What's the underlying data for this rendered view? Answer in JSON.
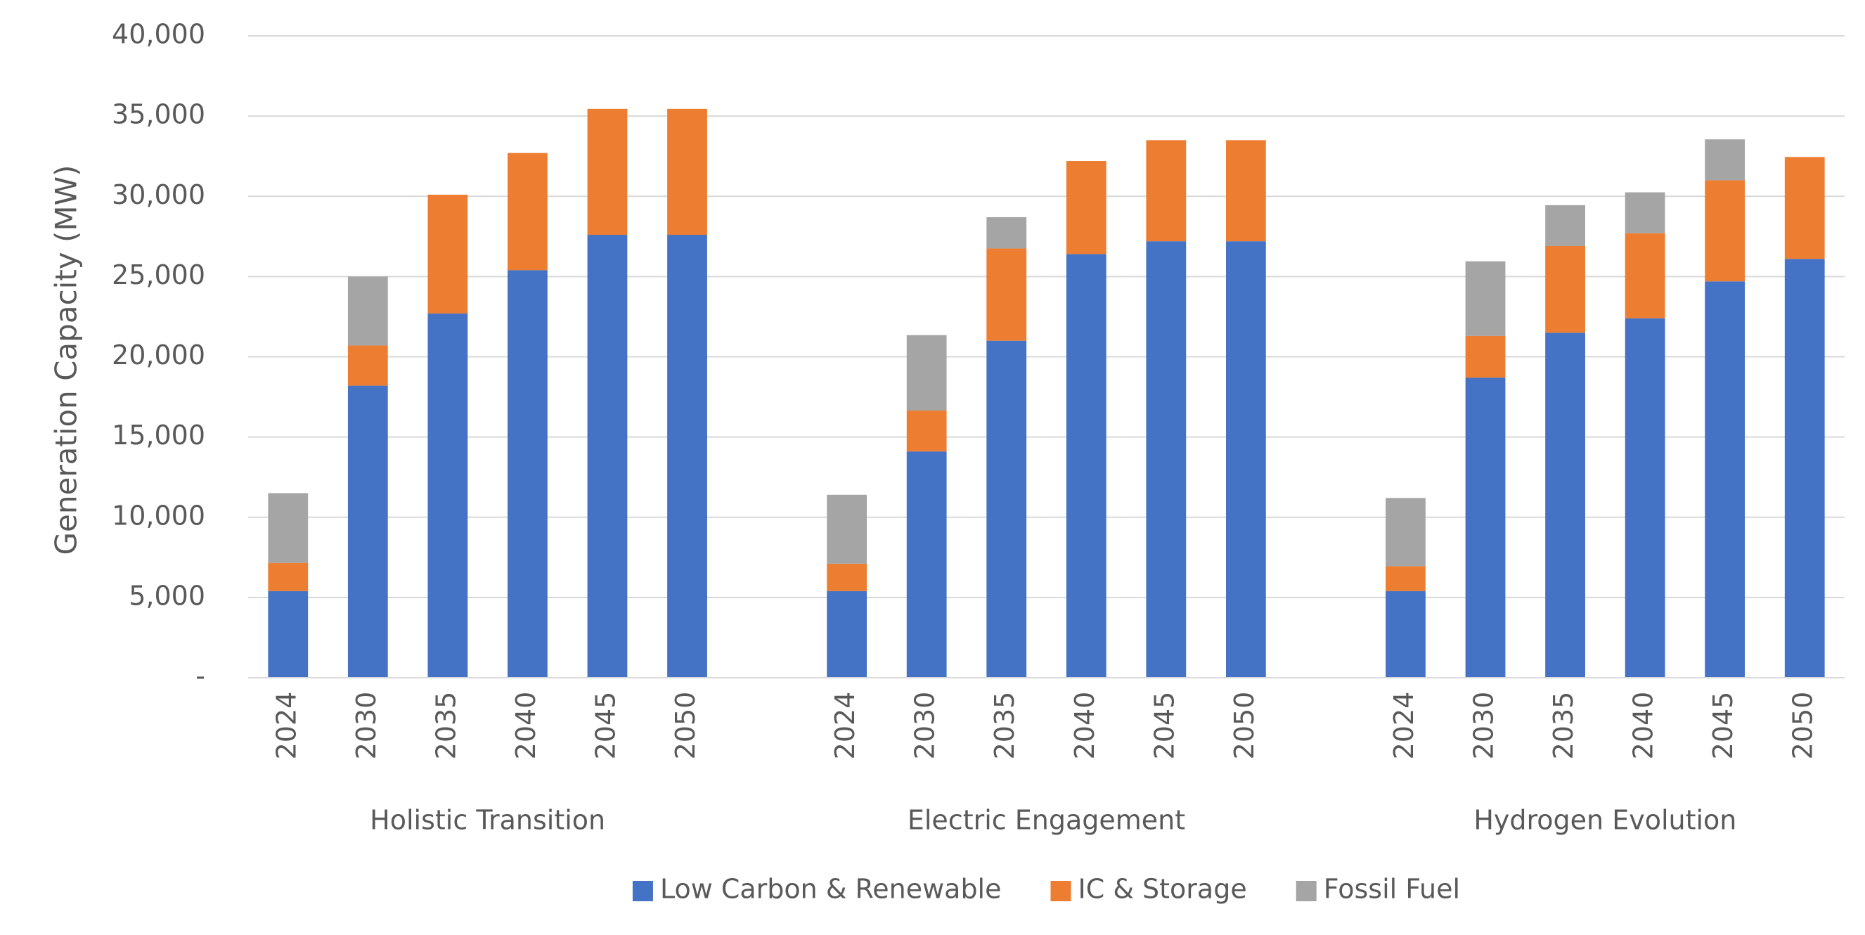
{
  "chart_data": {
    "type": "stacked_bar",
    "y_label": "Generation Capacity (MW)",
    "group_labels": [
      "Holistic Transition",
      "Electric Engagement",
      "Hydrogen Evolution"
    ],
    "categories": [
      "2024",
      "2030",
      "2035",
      "2040",
      "2045",
      "2050",
      "2024",
      "2030",
      "2035",
      "2040",
      "2045",
      "2050",
      "2024",
      "2030",
      "2035",
      "2040",
      "2045",
      "2050"
    ],
    "series": [
      {
        "name": "Low Carbon & Renewable",
        "color": "#4472c4",
        "values": [
          5400,
          18200,
          22700,
          25400,
          27600,
          27600,
          5400,
          14100,
          21000,
          26400,
          27200,
          27200,
          5400,
          18700,
          21500,
          22400,
          24700,
          26100
        ]
      },
      {
        "name": "IC & Storage",
        "color": "#ed7d31",
        "values": [
          1750,
          2500,
          7400,
          7300,
          7850,
          7850,
          1700,
          2550,
          5750,
          5800,
          6300,
          6300,
          1550,
          2600,
          5400,
          5300,
          6300,
          6350
        ]
      },
      {
        "name": "Fossil Fuel",
        "color": "#a5a5a5",
        "values": [
          4350,
          4300,
          0,
          0,
          0,
          0,
          4300,
          4700,
          1950,
          0,
          0,
          0,
          4250,
          4650,
          2550,
          2550,
          2550,
          0
        ]
      }
    ],
    "ylim": [
      0,
      40000
    ],
    "yticks": [
      {
        "value": 0,
        "label": "-"
      },
      {
        "value": 5000,
        "label": "5,000"
      },
      {
        "value": 10000,
        "label": "10,000"
      },
      {
        "value": 15000,
        "label": "15,000"
      },
      {
        "value": 20000,
        "label": "20,000"
      },
      {
        "value": 25000,
        "label": "25,000"
      },
      {
        "value": 30000,
        "label": "30,000"
      },
      {
        "value": 35000,
        "label": "35,000"
      },
      {
        "value": 40000,
        "label": "40,000"
      }
    ],
    "grid": true,
    "legend": "bottom"
  }
}
